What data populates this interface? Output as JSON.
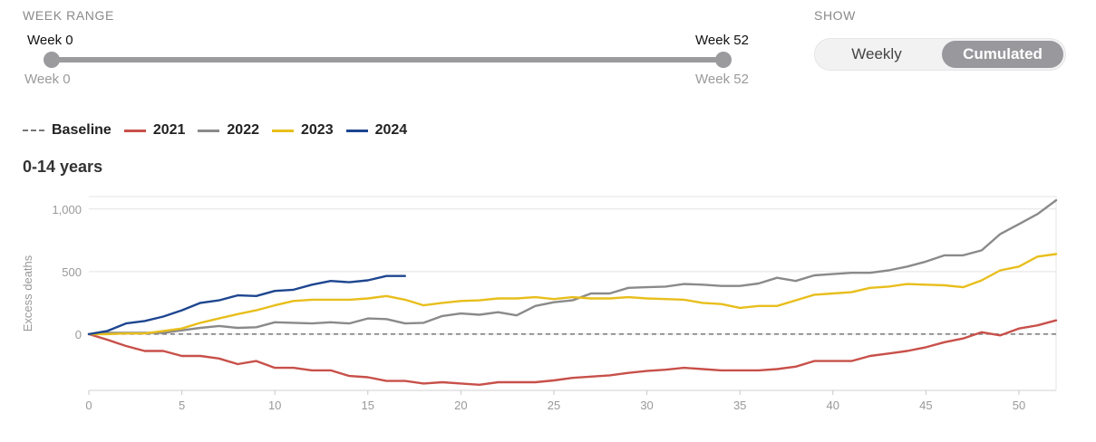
{
  "controls": {
    "week_range_label": "WEEK RANGE",
    "range_start_top": "Week 0",
    "range_end_top": "Week 52",
    "range_start_bottom": "Week 0",
    "range_end_bottom": "Week 52",
    "show_label": "SHOW",
    "toggle_weekly": "Weekly",
    "toggle_cumulated": "Cumulated",
    "toggle_selected": "Cumulated"
  },
  "chart_data": {
    "type": "line",
    "title": "0-14 years",
    "xlabel": "",
    "ylabel": "Excess deaths",
    "xlim": [
      0,
      52
    ],
    "ylim": [
      -450,
      1100
    ],
    "x_ticks": [
      0,
      5,
      10,
      15,
      20,
      25,
      30,
      35,
      40,
      45,
      50
    ],
    "y_ticks": [
      0,
      500,
      1000
    ],
    "y_tick_labels": [
      "0",
      "500",
      "1,000"
    ],
    "grid": "horizontal",
    "legend_position": "top-left",
    "baseline": {
      "name": "Baseline",
      "value": 0,
      "color": "#777777",
      "style": "dashed"
    },
    "series": [
      {
        "name": "2021",
        "color": "#c8504a",
        "x": [
          0,
          1,
          2,
          3,
          4,
          5,
          6,
          7,
          8,
          9,
          10,
          11,
          12,
          13,
          14,
          15,
          16,
          17,
          18,
          19,
          20,
          21,
          22,
          23,
          24,
          25,
          26,
          27,
          28,
          29,
          30,
          31,
          32,
          33,
          34,
          35,
          36,
          37,
          38,
          39,
          40,
          41,
          42,
          43,
          44,
          45,
          46,
          47,
          48,
          49,
          50,
          51,
          52
        ],
        "values": [
          0,
          -45,
          -95,
          -135,
          -135,
          -175,
          -175,
          -195,
          -240,
          -215,
          -270,
          -270,
          -290,
          -290,
          -335,
          -345,
          -375,
          -375,
          -395,
          -385,
          -395,
          -405,
          -385,
          -385,
          -385,
          -370,
          -350,
          -340,
          -330,
          -310,
          -295,
          -285,
          -270,
          -280,
          -290,
          -290,
          -290,
          -280,
          -260,
          -215,
          -215,
          -215,
          -175,
          -155,
          -135,
          -105,
          -65,
          -35,
          15,
          -10,
          45,
          70,
          110
        ]
      },
      {
        "name": "2022",
        "color": "#8a8a8a",
        "x": [
          0,
          1,
          2,
          3,
          4,
          5,
          6,
          7,
          8,
          9,
          10,
          11,
          12,
          13,
          14,
          15,
          16,
          17,
          18,
          19,
          20,
          21,
          22,
          23,
          24,
          25,
          26,
          27,
          28,
          29,
          30,
          31,
          32,
          33,
          34,
          35,
          36,
          37,
          38,
          39,
          40,
          41,
          42,
          43,
          44,
          45,
          46,
          47,
          48,
          49,
          50,
          51,
          52
        ],
        "values": [
          0,
          10,
          10,
          10,
          10,
          30,
          50,
          65,
          50,
          55,
          95,
          90,
          85,
          95,
          85,
          125,
          120,
          85,
          90,
          145,
          165,
          155,
          175,
          150,
          225,
          255,
          270,
          325,
          325,
          370,
          375,
          380,
          400,
          395,
          385,
          385,
          405,
          450,
          425,
          470,
          480,
          490,
          490,
          510,
          540,
          580,
          630,
          630,
          670,
          800,
          880,
          960,
          1070
        ]
      },
      {
        "name": "2023",
        "color": "#e8be1c",
        "x": [
          0,
          1,
          2,
          3,
          4,
          5,
          6,
          7,
          8,
          9,
          10,
          11,
          12,
          13,
          14,
          15,
          16,
          17,
          18,
          19,
          20,
          21,
          22,
          23,
          24,
          25,
          26,
          27,
          28,
          29,
          30,
          31,
          32,
          33,
          34,
          35,
          36,
          37,
          38,
          39,
          40,
          41,
          42,
          43,
          44,
          45,
          46,
          47,
          48,
          49,
          50,
          51,
          52
        ],
        "values": [
          0,
          0,
          5,
          5,
          25,
          45,
          90,
          125,
          160,
          190,
          230,
          265,
          275,
          275,
          275,
          285,
          305,
          275,
          230,
          250,
          265,
          270,
          285,
          285,
          295,
          280,
          295,
          285,
          285,
          295,
          285,
          280,
          275,
          250,
          240,
          210,
          225,
          225,
          270,
          315,
          325,
          335,
          370,
          380,
          400,
          395,
          390,
          375,
          430,
          510,
          540,
          620,
          640
        ]
      },
      {
        "name": "2024",
        "color": "#1e4690",
        "x": [
          0,
          1,
          2,
          3,
          4,
          5,
          6,
          7,
          8,
          9,
          10,
          11,
          12,
          13,
          14,
          15,
          16,
          17
        ],
        "values": [
          0,
          25,
          85,
          105,
          140,
          190,
          250,
          270,
          310,
          305,
          345,
          355,
          395,
          425,
          415,
          430,
          465,
          465
        ]
      }
    ]
  }
}
